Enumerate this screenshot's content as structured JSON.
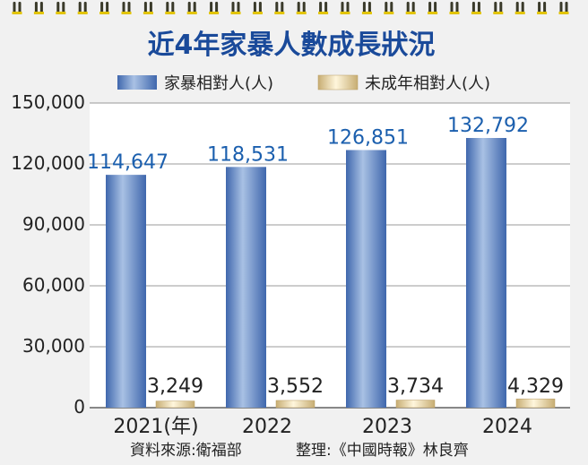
{
  "chart_data": {
    "type": "bar",
    "title": "近4年家暴人數成長狀況",
    "categories": [
      "2021",
      "2022",
      "2023",
      "2024"
    ],
    "first_category_suffix": "(年)",
    "series": [
      {
        "name": "家暴相對人(人)",
        "values": [
          114647,
          118531,
          126851,
          132792
        ],
        "labels": [
          "114,647",
          "118,531",
          "126,851",
          "132,792"
        ]
      },
      {
        "name": "未成年相對人(人)",
        "values": [
          3249,
          3552,
          3734,
          4329
        ],
        "labels": [
          "3,249",
          "3,552",
          "3,734",
          "4,329"
        ]
      }
    ],
    "ylim": [
      0,
      150000
    ],
    "yticks": [
      0,
      30000,
      60000,
      90000,
      120000,
      150000
    ],
    "ytick_labels": [
      "0",
      "30,000",
      "60,000",
      "90,000",
      "120,000",
      "150,000"
    ],
    "grid": true,
    "legend": "top",
    "footer": {
      "source": "資料來源:衛福部",
      "editor": "整理:《中國時報》林良齊"
    },
    "colors": {
      "series1_light": "#a9c1e4",
      "series1_dark": "#3f67ad",
      "series2_light": "#fff6dc",
      "series2_dark": "#c7ad73",
      "title": "#1a4a9a",
      "value_label": "#1b5fae",
      "background": "#f1f1f1",
      "plot": "#ffffff"
    }
  }
}
